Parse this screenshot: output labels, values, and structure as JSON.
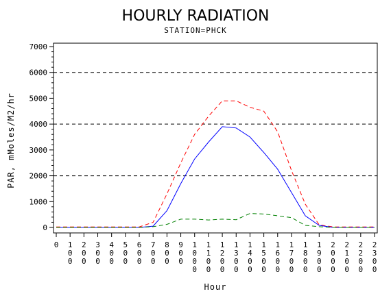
{
  "chart_data": {
    "type": "line",
    "title": "HOURLY RADIATION",
    "subtitle": "STATION=PHCK",
    "xlabel": "Hour",
    "ylabel": "PAR, mMoles/M2/hr",
    "ylim": [
      0,
      7000
    ],
    "y_ticks": [
      "0",
      "1000",
      "2000",
      "3000",
      "4000",
      "5000",
      "6000",
      "7000"
    ],
    "y_tick_values": [
      0,
      1000,
      2000,
      3000,
      4000,
      5000,
      6000,
      7000
    ],
    "grid_lines": [
      2000,
      4000,
      6000
    ],
    "x": [
      0,
      100,
      200,
      300,
      400,
      500,
      600,
      700,
      800,
      900,
      1000,
      1100,
      1200,
      1300,
      1400,
      1500,
      1600,
      1700,
      1800,
      1900,
      2000,
      2100,
      2200,
      2300
    ],
    "x_tick_labels": [
      "0",
      "100",
      "200",
      "300",
      "400",
      "500",
      "600",
      "700",
      "800",
      "900",
      "1000",
      "1100",
      "1200",
      "1300",
      "1400",
      "1500",
      "1600",
      "1700",
      "1800",
      "1900",
      "2000",
      "2100",
      "2200",
      "2300"
    ],
    "series": [
      {
        "color": "#ff0000",
        "style": "dashed",
        "values": [
          20,
          20,
          20,
          20,
          20,
          20,
          20,
          200,
          1300,
          2500,
          3600,
          4300,
          4900,
          4900,
          4650,
          4500,
          3700,
          2200,
          900,
          100,
          20,
          20,
          20,
          20
        ]
      },
      {
        "color": "#0000ff",
        "style": "solid",
        "values": [
          0,
          0,
          0,
          0,
          0,
          0,
          0,
          50,
          650,
          1700,
          2650,
          3300,
          3900,
          3850,
          3500,
          2900,
          2250,
          1350,
          450,
          80,
          0,
          0,
          0,
          0
        ]
      },
      {
        "color": "#008000",
        "style": "dashed",
        "values": [
          0,
          0,
          0,
          0,
          0,
          0,
          0,
          30,
          120,
          320,
          320,
          290,
          320,
          300,
          540,
          520,
          450,
          380,
          80,
          30,
          0,
          0,
          0,
          0
        ]
      }
    ]
  }
}
